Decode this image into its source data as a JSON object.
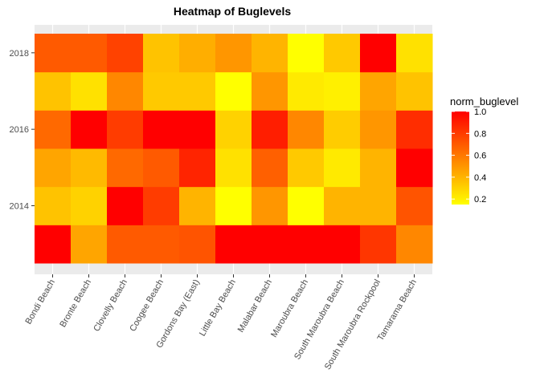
{
  "chart_data": {
    "type": "heatmap",
    "title": "Heatmap of Buglevels",
    "xlabel": "",
    "ylabel": "",
    "categories": [
      "Bondi Beach",
      "Bronte Beach",
      "Clovelly Beach",
      "Coogee Beach",
      "Gordons Bay (East)",
      "Little Bay Beach",
      "Malabar Beach",
      "Maroubra Beach",
      "South Maroubra Beach",
      "South Maroubra Rockpool",
      "Tamarama Beach"
    ],
    "y": [
      2013,
      2014,
      2015,
      2016,
      2017,
      2018
    ],
    "y_tick_values": [
      2014,
      2016,
      2018
    ],
    "y_tick_labels": [
      "2014",
      "2016",
      "2018"
    ],
    "values": [
      [
        1.0,
        0.45,
        0.7,
        0.7,
        0.72,
        1.0,
        1.0,
        1.0,
        1.0,
        0.82,
        0.55
      ],
      [
        0.35,
        0.3,
        1.0,
        0.8,
        0.4,
        0.15,
        0.5,
        0.15,
        0.4,
        0.4,
        0.72
      ],
      [
        0.45,
        0.38,
        0.65,
        0.7,
        0.88,
        0.25,
        0.68,
        0.33,
        0.22,
        0.4,
        1.0
      ],
      [
        0.65,
        1.0,
        0.8,
        1.0,
        1.0,
        0.3,
        0.9,
        0.55,
        0.32,
        0.5,
        0.85
      ],
      [
        0.35,
        0.25,
        0.55,
        0.33,
        0.33,
        0.15,
        0.5,
        0.22,
        0.2,
        0.45,
        0.35
      ],
      [
        0.7,
        0.7,
        0.78,
        0.35,
        0.42,
        0.5,
        0.4,
        0.15,
        0.33,
        1.0,
        0.25
      ]
    ],
    "legend": {
      "title": "norm_buglevel",
      "placement": "right",
      "ticks": [
        0.2,
        0.4,
        0.6,
        0.8,
        1.0
      ],
      "tick_labels": [
        "0.2",
        "0.4",
        "0.6",
        "0.8",
        "1.0"
      ],
      "range": [
        0.15,
        1.0
      ],
      "low_color": "#FFFF00",
      "high_color": "#FF0000"
    },
    "panel_background": "#EBEBEB",
    "grid": true
  }
}
